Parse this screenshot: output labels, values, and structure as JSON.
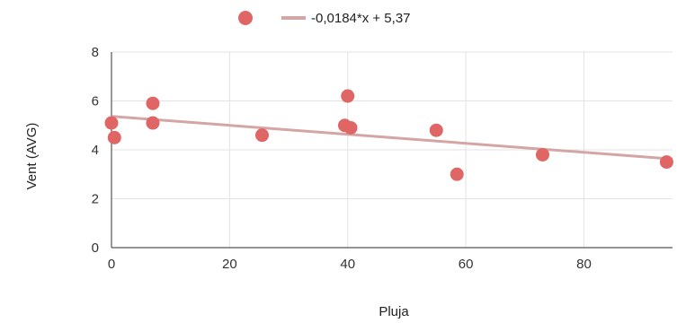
{
  "chart_data": {
    "type": "scatter",
    "xlabel": "Pluja",
    "ylabel": "Vent (AVG)",
    "xlim": [
      0,
      95
    ],
    "ylim": [
      0,
      8
    ],
    "x_ticks": [
      0,
      20,
      40,
      60,
      80
    ],
    "x_tick_labels": [
      "0",
      "20",
      "40",
      "60",
      "80"
    ],
    "y_ticks": [
      0,
      2,
      4,
      6,
      8
    ],
    "y_tick_labels": [
      "0",
      "2",
      "4",
      "6",
      "8"
    ],
    "grid": true,
    "legend_position": "top",
    "series": [
      {
        "type": "scatter",
        "color": "#e06666",
        "x": [
          0,
          0.5,
          7,
          7,
          25.5,
          39.5,
          40,
          40.5,
          55,
          58.5,
          73,
          94
        ],
        "y": [
          5.1,
          4.5,
          5.9,
          5.1,
          4.6,
          5.0,
          6.2,
          4.9,
          4.8,
          3.0,
          3.8,
          3.5
        ]
      }
    ],
    "trendline": {
      "label": "-0,0184*x + 5,37",
      "slope": -0.0184,
      "intercept": 5.37,
      "color": "#d4a5a5"
    }
  }
}
